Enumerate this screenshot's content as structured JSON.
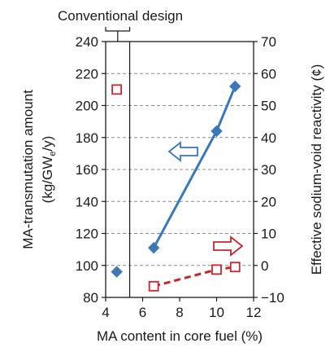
{
  "chart_data": {
    "type": "line",
    "xlabel": "MA content in core fuel (%)",
    "ylabel_left": "MA-transmutation amount",
    "ylabel_left_unit": "(kg/GW",
    "ylabel_left_sub": "e",
    "ylabel_left_unit_end": "/y)",
    "ylabel_right": "Effective sodium-void reactivity (¢)",
    "xlim": [
      4,
      12
    ],
    "ylim_left": [
      80,
      240
    ],
    "ylim_right": [
      -10,
      70
    ],
    "x_ticks": [
      "4",
      "6",
      "8",
      "10",
      "12"
    ],
    "y_left_ticks": [
      "80",
      "100",
      "120",
      "140",
      "160",
      "180",
      "200",
      "220",
      "240"
    ],
    "y_right_ticks": [
      "−10",
      "0",
      "10",
      "20",
      "30",
      "40",
      "50",
      "60",
      "70"
    ],
    "grid": "horizontal dashed",
    "annotation": "Conventional design",
    "conventional_boundary_x": 5.3,
    "colors": {
      "blue": "#3a78b8",
      "red": "#c0282d"
    },
    "series": [
      {
        "axis": "left",
        "marker": "diamond",
        "style": "solid",
        "x": [
          6.6,
          10.0,
          11.0
        ],
        "y": [
          111,
          184,
          212
        ]
      },
      {
        "axis": "left",
        "marker": "diamond",
        "style": "point",
        "x": [
          4.6
        ],
        "y": [
          96
        ]
      },
      {
        "axis": "right",
        "marker": "open-square",
        "style": "dashed",
        "x": [
          6.6,
          10.0,
          11.0
        ],
        "y": [
          -6.5,
          -1.3,
          -0.5
        ]
      },
      {
        "axis": "right",
        "marker": "open-square",
        "style": "point",
        "x": [
          4.6
        ],
        "y": [
          55
        ]
      }
    ]
  }
}
